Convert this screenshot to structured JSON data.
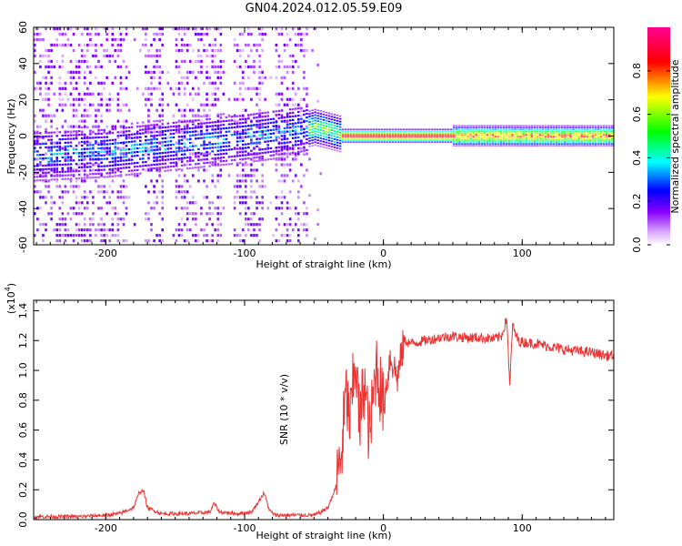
{
  "title": "GN04.2024.012.05.59.E09",
  "chart_data": [
    {
      "type": "heatmap",
      "xlabel": "Height of straight line (km)",
      "ylabel": "Frequency (Hz)",
      "xlim": [
        -252,
        166
      ],
      "ylim": [
        -60,
        60
      ],
      "x_ticks": [
        -200,
        -100,
        0,
        100
      ],
      "y_ticks": [
        -60,
        -40,
        -20,
        0,
        20,
        40,
        60
      ],
      "colorbar": {
        "label": "Normalized spectral amplitude",
        "range": [
          0,
          1
        ],
        "ticks": [
          0.0,
          0.2,
          0.4,
          0.6,
          0.8
        ],
        "colors": [
          "#ffffff",
          "#d9a6ff",
          "#8a00ff",
          "#0000ff",
          "#00ffff",
          "#00ff00",
          "#ffff00",
          "#ff0000",
          "#ff0090"
        ]
      },
      "ridge_center_hz": [
        [
          -252,
          -12
        ],
        [
          -200,
          -10
        ],
        [
          -150,
          -6
        ],
        [
          -100,
          -2
        ],
        [
          -60,
          2
        ],
        [
          -50,
          4
        ],
        [
          -40,
          2
        ],
        [
          -30,
          0
        ],
        [
          -20,
          0
        ],
        [
          0,
          0
        ],
        [
          50,
          0
        ],
        [
          100,
          0
        ],
        [
          166,
          0
        ]
      ],
      "regions": [
        {
          "x_range": [
            -252,
            -55
          ],
          "description": "diffuse low-amplitude noise spanning all frequencies, peak amplitude ~0.4"
        },
        {
          "x_range": [
            -55,
            -30
          ],
          "description": "transition, amplitude ~0.4-0.6 near 0 Hz"
        },
        {
          "x_range": [
            -30,
            50
          ],
          "description": "narrow band at 0 Hz, amplitude ~0.9"
        },
        {
          "x_range": [
            50,
            166
          ],
          "description": "band at 0 Hz, amplitude ~0.6-0.9"
        }
      ]
    },
    {
      "type": "line",
      "xlabel": "Height of straight line (km)",
      "ylabel": "SNR (10 * v/v)",
      "y_scale_label": "(x10",
      "y_scale_exp": "4",
      "y_scale_close": ")",
      "xlim": [
        -252,
        166
      ],
      "ylim": [
        0,
        1.47
      ],
      "x_ticks": [
        -200,
        -100,
        0,
        100
      ],
      "y_ticks": [
        0.0,
        0.2,
        0.4,
        0.6,
        0.8,
        1.0,
        1.2,
        1.4
      ],
      "color": "#ee3333",
      "series": [
        {
          "x": [
            -252,
            -240,
            -220,
            -200,
            -190,
            -180,
            -176,
            -173,
            -170,
            -160,
            -150,
            -140,
            -125,
            -122,
            -118,
            -105,
            -95,
            -90,
            -86,
            -82,
            -78,
            -70,
            -60,
            -50,
            -45,
            -40,
            -35,
            -30,
            -27,
            -24,
            -20,
            -17,
            -14,
            -10,
            -5,
            0,
            5,
            10,
            15,
            20,
            30,
            40,
            50,
            60,
            70,
            80,
            85,
            89,
            91,
            93,
            97,
            100,
            110,
            120,
            130,
            140,
            150,
            160,
            166
          ],
          "y": [
            0.02,
            0.02,
            0.02,
            0.03,
            0.04,
            0.08,
            0.18,
            0.2,
            0.08,
            0.04,
            0.04,
            0.04,
            0.05,
            0.11,
            0.05,
            0.04,
            0.05,
            0.12,
            0.18,
            0.06,
            0.03,
            0.03,
            0.03,
            0.03,
            0.05,
            0.08,
            0.2,
            0.45,
            0.85,
            0.65,
            1.1,
            0.6,
            0.95,
            0.55,
            1.05,
            0.75,
            1.1,
            0.95,
            1.2,
            1.18,
            1.2,
            1.22,
            1.23,
            1.22,
            1.22,
            1.21,
            1.23,
            1.35,
            0.88,
            1.3,
            1.2,
            1.19,
            1.18,
            1.16,
            1.14,
            1.13,
            1.12,
            1.1,
            1.1
          ]
        }
      ]
    }
  ]
}
